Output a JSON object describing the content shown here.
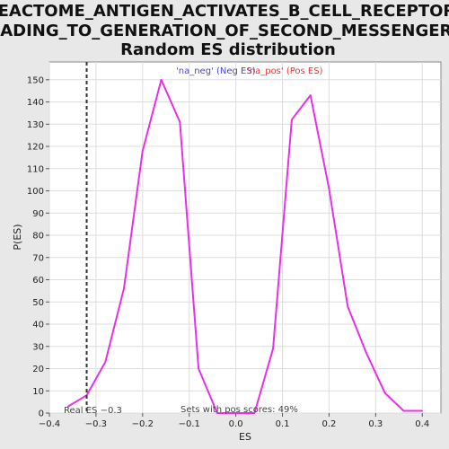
{
  "chart_data": {
    "type": "line",
    "title_lines": [
      "REACTOME_ANTIGEN_ACTIVATES_B_CELL_RECEPTOR_",
      "LEADING_TO_GENERATION_OF_SECOND_MESSENGERS:",
      "Random ES distribution"
    ],
    "xlabel": "ES",
    "ylabel": "P(ES)",
    "xlim": [
      -0.4,
      0.44
    ],
    "ylim": [
      0,
      158
    ],
    "x_ticks": [
      -0.4,
      -0.3,
      -0.2,
      -0.1,
      0.0,
      0.1,
      0.2,
      0.3,
      0.4
    ],
    "x_tick_labels": [
      "−0.4",
      "−0.3",
      "−0.2",
      "−0.1",
      "0.0",
      "0.1",
      "0.2",
      "0.3",
      "0.4"
    ],
    "y_ticks": [
      0,
      10,
      20,
      30,
      40,
      50,
      60,
      70,
      80,
      90,
      100,
      110,
      120,
      130,
      140,
      150
    ],
    "y_tick_labels": [
      "0",
      "10",
      "20",
      "30",
      "40",
      "50",
      "60",
      "70",
      "80",
      "90",
      "100",
      "110",
      "120",
      "130",
      "140",
      "150"
    ],
    "grid": true,
    "series": [
      {
        "color": "#e830e8",
        "points": [
          [
            -0.36,
            3
          ],
          [
            -0.32,
            8
          ],
          [
            -0.28,
            23
          ],
          [
            -0.24,
            56
          ],
          [
            -0.2,
            118
          ],
          [
            -0.16,
            150
          ],
          [
            -0.12,
            131
          ],
          [
            -0.08,
            20
          ],
          [
            -0.04,
            0
          ],
          [
            0.0,
            0
          ],
          [
            0.04,
            0
          ],
          [
            0.08,
            29
          ],
          [
            0.12,
            132
          ],
          [
            0.16,
            143
          ],
          [
            0.2,
            101
          ],
          [
            0.24,
            48
          ],
          [
            0.28,
            27
          ],
          [
            0.32,
            9
          ],
          [
            0.36,
            1
          ],
          [
            0.4,
            1
          ]
        ]
      }
    ],
    "reference_line": {
      "x": -0.32,
      "style": "dashed",
      "color": "#333333",
      "label": "Real ES −0.3"
    },
    "legend": {
      "placement": "top-center",
      "entries": [
        {
          "text": "'na_neg' (Neg ES)",
          "color": "#4444dd"
        },
        {
          "text": "'na_pos' (Pos ES)",
          "color": "#ee3333"
        }
      ]
    },
    "annotation": "Sets with pos scores: 49%"
  }
}
